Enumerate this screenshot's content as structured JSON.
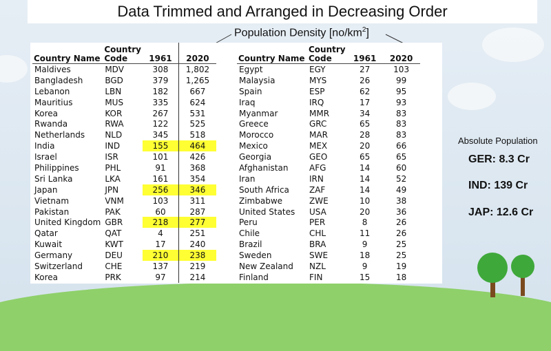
{
  "title": "Data Trimmed and Arranged in Decreasing Order",
  "subtitle": "Population Density [no/km",
  "subtitle_sup": "2",
  "subtitle_end": "]",
  "headers": {
    "name": "Country Name",
    "code": "Country Code",
    "y1961": "1961",
    "y2020": "2020"
  },
  "left_rows": [
    {
      "name": "Maldives",
      "code": "MDV",
      "v1961": "308",
      "v2020": "1,802"
    },
    {
      "name": "Bangladesh",
      "code": "BGD",
      "v1961": "379",
      "v2020": "1,265"
    },
    {
      "name": "Lebanon",
      "code": "LBN",
      "v1961": "182",
      "v2020": "667"
    },
    {
      "name": "Mauritius",
      "code": "MUS",
      "v1961": "335",
      "v2020": "624"
    },
    {
      "name": "Korea",
      "code": "KOR",
      "v1961": "267",
      "v2020": "531"
    },
    {
      "name": "Rwanda",
      "code": "RWA",
      "v1961": "122",
      "v2020": "525"
    },
    {
      "name": "Netherlands",
      "code": "NLD",
      "v1961": "345",
      "v2020": "518"
    },
    {
      "name": "India",
      "code": "IND",
      "v1961": "155",
      "v2020": "464",
      "highlight": true
    },
    {
      "name": "Israel",
      "code": "ISR",
      "v1961": "101",
      "v2020": "426"
    },
    {
      "name": "Philippines",
      "code": "PHL",
      "v1961": "91",
      "v2020": "368"
    },
    {
      "name": "Sri Lanka",
      "code": "LKA",
      "v1961": "161",
      "v2020": "354"
    },
    {
      "name": "Japan",
      "code": "JPN",
      "v1961": "256",
      "v2020": "346",
      "highlight": true
    },
    {
      "name": "Vietnam",
      "code": "VNM",
      "v1961": "103",
      "v2020": "311"
    },
    {
      "name": "Pakistan",
      "code": "PAK",
      "v1961": "60",
      "v2020": "287"
    },
    {
      "name": "United Kingdom",
      "code": "GBR",
      "v1961": "218",
      "v2020": "277",
      "highlight": true
    },
    {
      "name": "Qatar",
      "code": "QAT",
      "v1961": "4",
      "v2020": "251"
    },
    {
      "name": "Kuwait",
      "code": "KWT",
      "v1961": "17",
      "v2020": "240"
    },
    {
      "name": "Germany",
      "code": "DEU",
      "v1961": "210",
      "v2020": "238",
      "highlight": true
    },
    {
      "name": "Switzerland",
      "code": "CHE",
      "v1961": "137",
      "v2020": "219"
    },
    {
      "name": "Korea",
      "code": "PRK",
      "v1961": "97",
      "v2020": "214"
    }
  ],
  "right_rows": [
    {
      "name": "Egypt",
      "code": "EGY",
      "v1961": "27",
      "v2020": "103"
    },
    {
      "name": "Malaysia",
      "code": "MYS",
      "v1961": "26",
      "v2020": "99"
    },
    {
      "name": "Spain",
      "code": "ESP",
      "v1961": "62",
      "v2020": "95"
    },
    {
      "name": "Iraq",
      "code": "IRQ",
      "v1961": "17",
      "v2020": "93"
    },
    {
      "name": "Myanmar",
      "code": "MMR",
      "v1961": "34",
      "v2020": "83"
    },
    {
      "name": "Greece",
      "code": "GRC",
      "v1961": "65",
      "v2020": "83"
    },
    {
      "name": "Morocco",
      "code": "MAR",
      "v1961": "28",
      "v2020": "83"
    },
    {
      "name": "Mexico",
      "code": "MEX",
      "v1961": "20",
      "v2020": "66"
    },
    {
      "name": "Georgia",
      "code": "GEO",
      "v1961": "65",
      "v2020": "65"
    },
    {
      "name": "Afghanistan",
      "code": "AFG",
      "v1961": "14",
      "v2020": "60"
    },
    {
      "name": "Iran",
      "code": "IRN",
      "v1961": "14",
      "v2020": "52"
    },
    {
      "name": "South Africa",
      "code": "ZAF",
      "v1961": "14",
      "v2020": "49"
    },
    {
      "name": "Zimbabwe",
      "code": "ZWE",
      "v1961": "10",
      "v2020": "38"
    },
    {
      "name": "United States",
      "code": "USA",
      "v1961": "20",
      "v2020": "36"
    },
    {
      "name": "Peru",
      "code": "PER",
      "v1961": "8",
      "v2020": "26"
    },
    {
      "name": "Chile",
      "code": "CHL",
      "v1961": "11",
      "v2020": "26"
    },
    {
      "name": "Brazil",
      "code": "BRA",
      "v1961": "9",
      "v2020": "25"
    },
    {
      "name": "Sweden",
      "code": "SWE",
      "v1961": "18",
      "v2020": "25"
    },
    {
      "name": "New Zealand",
      "code": "NZL",
      "v1961": "9",
      "v2020": "19"
    },
    {
      "name": "Finland",
      "code": "FIN",
      "v1961": "15",
      "v2020": "18"
    }
  ],
  "absolute": {
    "caption": "Absolute Population",
    "ger": "GER: 8.3 Cr",
    "ind": "IND: 139 Cr",
    "jap": "JAP: 12.6 Cr"
  },
  "colors": {
    "highlight": "#ffff33",
    "grass": "#8fd06a",
    "tree": "#3fa83a",
    "trunk": "#7a4a1e"
  }
}
